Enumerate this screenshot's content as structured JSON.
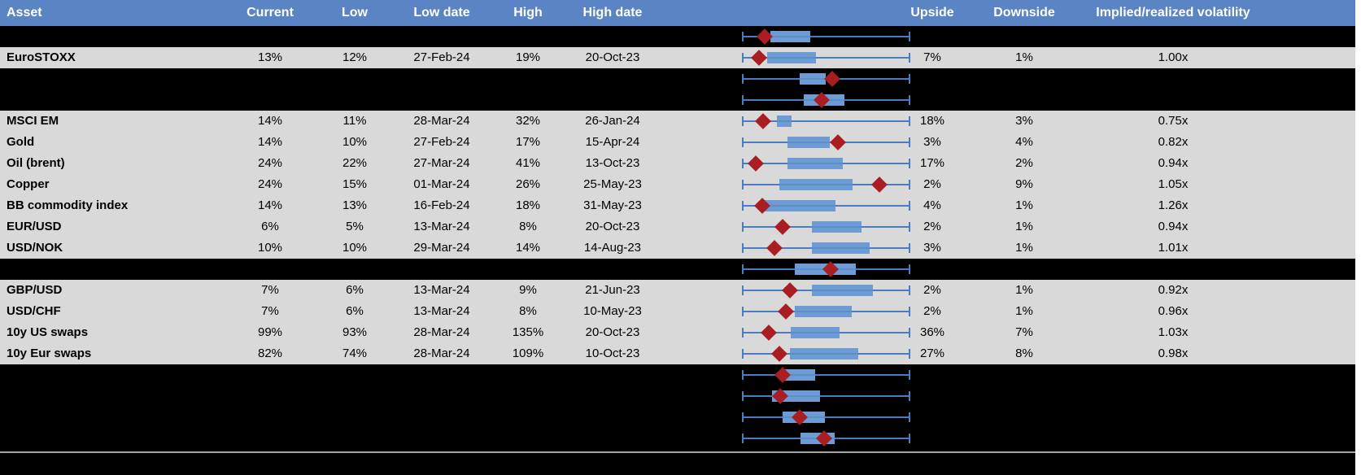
{
  "table": {
    "columns": [
      {
        "key": "asset",
        "label": "Asset"
      },
      {
        "key": "current",
        "label": "Current"
      },
      {
        "key": "low",
        "label": "Low"
      },
      {
        "key": "low_date",
        "label": "Low date"
      },
      {
        "key": "high",
        "label": "High"
      },
      {
        "key": "high_date",
        "label": "High date"
      },
      {
        "key": "upside",
        "label": "Upside"
      },
      {
        "key": "downside",
        "label": "Downside"
      },
      {
        "key": "ratio",
        "label": "Implied/realized volatility"
      }
    ],
    "rows": [
      {
        "type": "hidden",
        "box": {
          "lo": 0,
          "q1": 16.6,
          "q3": 40.5,
          "hi": 100,
          "marker": 13.2
        }
      },
      {
        "type": "data",
        "asset": "EuroSTOXX",
        "current": "13%",
        "low": "12%",
        "low_date": "27-Feb-24",
        "high": "19%",
        "high_date": "20-Oct-23",
        "upside": "7%",
        "downside": "1%",
        "ratio": "1.00x",
        "box": {
          "lo": 0,
          "q1": 14.6,
          "q3": 43.9,
          "hi": 100,
          "marker": 9.8
        }
      },
      {
        "type": "hidden",
        "box": {
          "lo": 0,
          "q1": 34.1,
          "q3": 49.8,
          "hi": 100,
          "marker": 53.7
        }
      },
      {
        "type": "hidden",
        "box": {
          "lo": 0,
          "q1": 36.6,
          "q3": 61.0,
          "hi": 100,
          "marker": 47.3
        }
      },
      {
        "type": "data",
        "asset": "MSCI EM",
        "current": "14%",
        "low": "11%",
        "low_date": "28-Mar-24",
        "high": "32%",
        "high_date": "26-Jan-24",
        "upside": "18%",
        "downside": "3%",
        "ratio": "0.75x",
        "box": {
          "lo": 0,
          "q1": 20.5,
          "q3": 29.3,
          "hi": 100,
          "marker": 12.2
        }
      },
      {
        "type": "data",
        "asset": "Gold",
        "current": "14%",
        "low": "10%",
        "low_date": "27-Feb-24",
        "high": "17%",
        "high_date": "15-Apr-24",
        "upside": "3%",
        "downside": "4%",
        "ratio": "0.82x",
        "box": {
          "lo": 0,
          "q1": 26.8,
          "q3": 52.2,
          "hi": 100,
          "marker": 57.1
        }
      },
      {
        "type": "data",
        "asset": "Oil (brent)",
        "current": "24%",
        "low": "22%",
        "low_date": "27-Mar-24",
        "high": "41%",
        "high_date": "13-Oct-23",
        "upside": "17%",
        "downside": "2%",
        "ratio": "0.94x",
        "box": {
          "lo": 0,
          "q1": 26.8,
          "q3": 60.0,
          "hi": 100,
          "marker": 7.8
        }
      },
      {
        "type": "data",
        "asset": "Copper",
        "current": "24%",
        "low": "15%",
        "low_date": "01-Mar-24",
        "high": "26%",
        "high_date": "25-May-23",
        "upside": "2%",
        "downside": "9%",
        "ratio": "1.05x",
        "box": {
          "lo": 0,
          "q1": 22.0,
          "q3": 65.9,
          "hi": 100,
          "marker": 82.0
        }
      },
      {
        "type": "data",
        "asset": "BB commodity index",
        "current": "14%",
        "low": "13%",
        "low_date": "16-Feb-24",
        "high": "18%",
        "high_date": "31-May-23",
        "upside": "4%",
        "downside": "1%",
        "ratio": "1.26x",
        "box": {
          "lo": 0,
          "q1": 12.2,
          "q3": 55.6,
          "hi": 100,
          "marker": 11.7
        }
      },
      {
        "type": "data",
        "asset": "EUR/USD",
        "current": "6%",
        "low": "5%",
        "low_date": "13-Mar-24",
        "high": "8%",
        "high_date": "20-Oct-23",
        "upside": "2%",
        "downside": "1%",
        "ratio": "0.94x",
        "box": {
          "lo": 0,
          "q1": 41.5,
          "q3": 71.2,
          "hi": 100,
          "marker": 23.9
        }
      },
      {
        "type": "data",
        "asset": "USD/NOK",
        "current": "10%",
        "low": "10%",
        "low_date": "29-Mar-24",
        "high": "14%",
        "high_date": "14-Aug-23",
        "upside": "3%",
        "downside": "1%",
        "ratio": "1.01x",
        "box": {
          "lo": 0,
          "q1": 41.5,
          "q3": 76.1,
          "hi": 100,
          "marker": 19.0
        }
      },
      {
        "type": "hidden",
        "box": {
          "lo": 0,
          "q1": 31.2,
          "q3": 67.8,
          "hi": 100,
          "marker": 52.7
        }
      },
      {
        "type": "data",
        "asset": "GBP/USD",
        "current": "7%",
        "low": "6%",
        "low_date": "13-Mar-24",
        "high": "9%",
        "high_date": "21-Jun-23",
        "upside": "2%",
        "downside": "1%",
        "ratio": "0.92x",
        "box": {
          "lo": 0,
          "q1": 41.5,
          "q3": 78.0,
          "hi": 100,
          "marker": 28.3
        }
      },
      {
        "type": "data",
        "asset": "USD/CHF",
        "current": "7%",
        "low": "6%",
        "low_date": "13-Mar-24",
        "high": "8%",
        "high_date": "10-May-23",
        "upside": "2%",
        "downside": "1%",
        "ratio": "0.96x",
        "box": {
          "lo": 0,
          "q1": 31.2,
          "q3": 65.4,
          "hi": 100,
          "marker": 25.9
        }
      },
      {
        "type": "data",
        "asset": "10y US swaps",
        "current": "99%",
        "low": "93%",
        "low_date": "28-Mar-24",
        "high": "135%",
        "high_date": "20-Oct-23",
        "upside": "36%",
        "downside": "7%",
        "ratio": "1.03x",
        "box": {
          "lo": 0,
          "q1": 28.8,
          "q3": 58.0,
          "hi": 100,
          "marker": 15.6
        }
      },
      {
        "type": "data",
        "asset": "10y Eur swaps",
        "current": "82%",
        "low": "74%",
        "low_date": "28-Mar-24",
        "high": "109%",
        "high_date": "10-Oct-23",
        "upside": "27%",
        "downside": "8%",
        "ratio": "0.98x",
        "box": {
          "lo": 0,
          "q1": 28.3,
          "q3": 69.3,
          "hi": 100,
          "marker": 22.0
        }
      },
      {
        "type": "hidden",
        "box": {
          "lo": 0,
          "q1": 24.4,
          "q3": 43.4,
          "hi": 100,
          "marker": 23.9
        }
      },
      {
        "type": "hidden",
        "box": {
          "lo": 0,
          "q1": 17.6,
          "q3": 46.3,
          "hi": 100,
          "marker": 22.4
        }
      },
      {
        "type": "hidden",
        "box": {
          "lo": 0,
          "q1": 23.9,
          "q3": 49.3,
          "hi": 100,
          "marker": 34.1
        }
      },
      {
        "type": "hidden",
        "box": {
          "lo": 0,
          "q1": 34.6,
          "q3": 55.1,
          "hi": 100,
          "marker": 48.8
        }
      }
    ]
  },
  "colors": {
    "header_bg": "#5B84C4",
    "header_text": "#FFFFFF",
    "row_gray": "#D9D9D9",
    "row_black": "#000000",
    "box_fill": "#6D9CD5",
    "box_median": "#5E8DC8",
    "whisker": "#4A7CC2",
    "marker": "#A81E22",
    "divider": "#A6A6A6"
  }
}
